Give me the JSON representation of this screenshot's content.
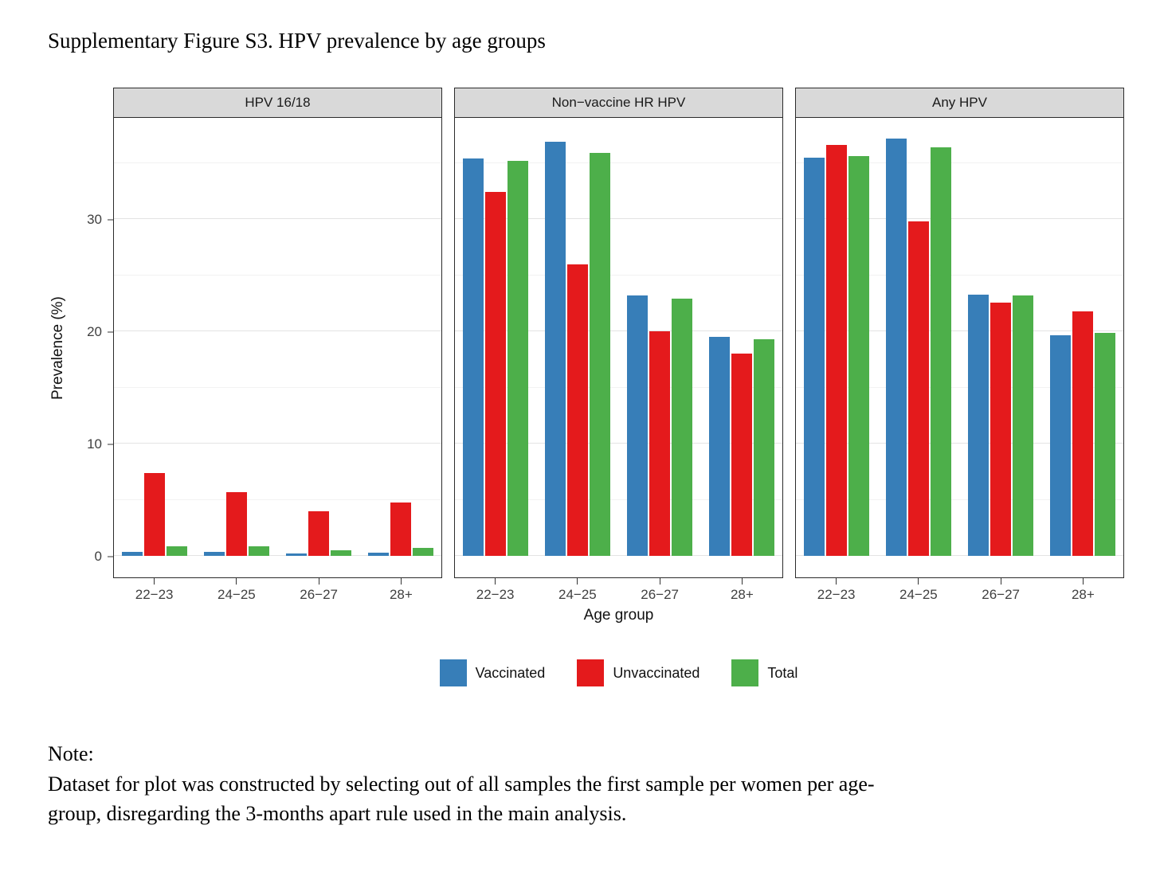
{
  "title": "Supplementary Figure S3. HPV prevalence by age groups",
  "note": {
    "label": "Note:",
    "line1": "Dataset for plot was constructed by selecting out of all samples the first sample per women per age-",
    "line2": "group, disregarding the 3-months apart rule used in the main analysis."
  },
  "chart_data": {
    "type": "bar",
    "title": "",
    "xlabel": "Age group",
    "ylabel": "Prevalence (%)",
    "categories": [
      "22−23",
      "24−25",
      "26−27",
      "28+"
    ],
    "yticks": [
      0,
      10,
      20,
      30
    ],
    "minor_yticks": [
      5,
      15,
      25,
      35
    ],
    "ylim": [
      -1.9,
      39.1
    ],
    "grid": true,
    "legend_position": "bottom",
    "series_colors": {
      "Vaccinated": "#377EB8",
      "Unvaccinated": "#E41A1C",
      "Total": "#4DAF4A"
    },
    "legend": [
      {
        "label": "Vaccinated",
        "color": "#377EB8"
      },
      {
        "label": "Unvaccinated",
        "color": "#E41A1C"
      },
      {
        "label": "Total",
        "color": "#4DAF4A"
      }
    ],
    "facets": [
      {
        "label": "HPV 16/18",
        "series": [
          {
            "name": "Vaccinated",
            "values": [
              0.4,
              0.4,
              0.2,
              0.3
            ]
          },
          {
            "name": "Unvaccinated",
            "values": [
              7.4,
              5.7,
              4.0,
              4.8
            ]
          },
          {
            "name": "Total",
            "values": [
              0.9,
              0.9,
              0.5,
              0.7
            ]
          }
        ]
      },
      {
        "label": "Non−vaccine HR HPV",
        "series": [
          {
            "name": "Vaccinated",
            "values": [
              35.4,
              36.9,
              23.2,
              19.5
            ]
          },
          {
            "name": "Unvaccinated",
            "values": [
              32.4,
              26.0,
              20.0,
              18.0
            ]
          },
          {
            "name": "Total",
            "values": [
              35.2,
              35.9,
              22.9,
              19.3
            ]
          }
        ]
      },
      {
        "label": "Any HPV",
        "series": [
          {
            "name": "Vaccinated",
            "values": [
              35.5,
              37.2,
              23.3,
              19.7
            ]
          },
          {
            "name": "Unvaccinated",
            "values": [
              36.6,
              29.8,
              22.6,
              21.8
            ]
          },
          {
            "name": "Total",
            "values": [
              35.6,
              36.4,
              23.2,
              19.9
            ]
          }
        ]
      }
    ]
  }
}
